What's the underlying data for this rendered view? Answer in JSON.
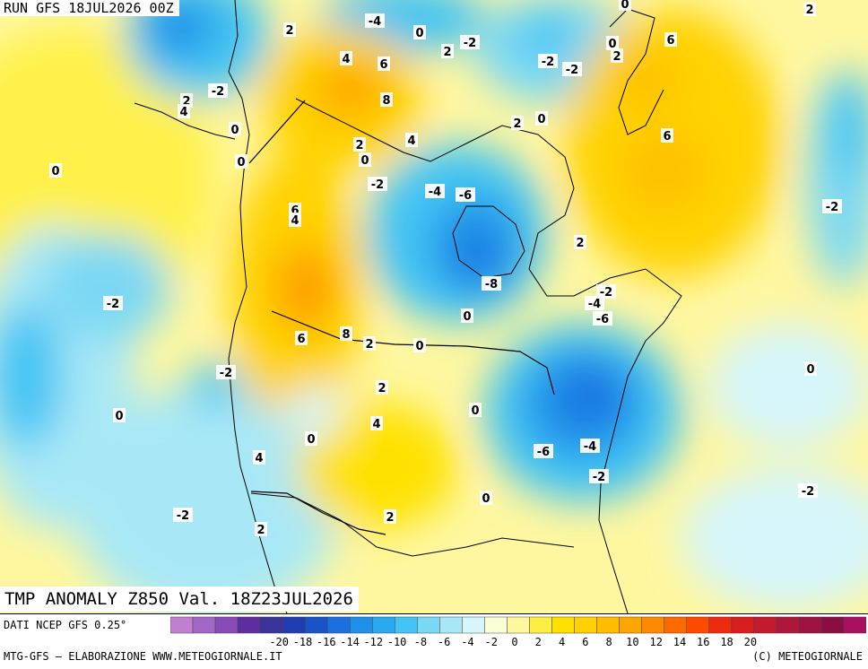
{
  "header": {
    "run_title": "RUN GFS 18JUL2026 00Z",
    "map_title": "TMP ANOMALY Z850 Val. 18Z23JUL2026"
  },
  "footer": {
    "source": "DATI NCEP GFS 0.25°",
    "credit_left": "MTG-GFS — ELABORAZIONE WWW.METEOGIORNALE.IT",
    "credit_right": "(C) METEOGIORNALE"
  },
  "legend": {
    "tick_labels": [
      "-20",
      "-18",
      "-16",
      "-14",
      "-12",
      "-10",
      "-8",
      "-6",
      "-4",
      "-2",
      "0",
      "2",
      "4",
      "6",
      "8",
      "10",
      "12",
      "14",
      "16",
      "18",
      "20"
    ],
    "colors": [
      "#c07fd0",
      "#a368c6",
      "#8a4ab8",
      "#5f2e9e",
      "#38349a",
      "#1f3cb0",
      "#1a52c8",
      "#1d6fe0",
      "#1f8fe8",
      "#2aa8f0",
      "#43c4f4",
      "#7ad8f4",
      "#a8e8f6",
      "#d6f6fb",
      "#fbffd6",
      "#fff7a0",
      "#ffee40",
      "#ffe100",
      "#ffd200",
      "#ffbd00",
      "#ffa500",
      "#ff8a00",
      "#ff6a00",
      "#ff4b00",
      "#ee2a10",
      "#d91c1c",
      "#c41a2e",
      "#b0163a",
      "#9d1240",
      "#8a0e42",
      "#aa1060"
    ]
  },
  "contour_labels": [
    {
      "text": "-4"
    },
    {
      "text": "0"
    },
    {
      "text": "2"
    },
    {
      "text": "2"
    },
    {
      "text": "-2"
    },
    {
      "text": "0"
    },
    {
      "text": "-2"
    },
    {
      "text": "-2"
    },
    {
      "text": "2"
    },
    {
      "text": "6"
    },
    {
      "text": "0"
    },
    {
      "text": "2"
    },
    {
      "text": "4"
    },
    {
      "text": "6"
    },
    {
      "text": "-2"
    },
    {
      "text": "2"
    },
    {
      "text": "4"
    },
    {
      "text": "8"
    },
    {
      "text": "0"
    },
    {
      "text": "2"
    },
    {
      "text": "0"
    },
    {
      "text": "6"
    },
    {
      "text": "0"
    },
    {
      "text": "2"
    },
    {
      "text": "4"
    },
    {
      "text": "0"
    },
    {
      "text": "0"
    },
    {
      "text": "-2"
    },
    {
      "text": "-4"
    },
    {
      "text": "-6"
    },
    {
      "text": "-2"
    },
    {
      "text": "6"
    },
    {
      "text": "4"
    },
    {
      "text": "2"
    },
    {
      "text": "-8"
    },
    {
      "text": "-2"
    },
    {
      "text": "0"
    },
    {
      "text": "-2"
    },
    {
      "text": "-4"
    },
    {
      "text": "-6"
    },
    {
      "text": "6"
    },
    {
      "text": "8"
    },
    {
      "text": "2"
    },
    {
      "text": "0"
    },
    {
      "text": "-2"
    },
    {
      "text": "0"
    },
    {
      "text": "2"
    },
    {
      "text": "4"
    },
    {
      "text": "0"
    },
    {
      "text": "0"
    },
    {
      "text": "4"
    },
    {
      "text": "-6"
    },
    {
      "text": "-4"
    },
    {
      "text": "-2"
    },
    {
      "text": "0"
    },
    {
      "text": "0"
    },
    {
      "text": "-2"
    },
    {
      "text": "2"
    },
    {
      "text": "2"
    },
    {
      "text": "-2"
    }
  ]
}
